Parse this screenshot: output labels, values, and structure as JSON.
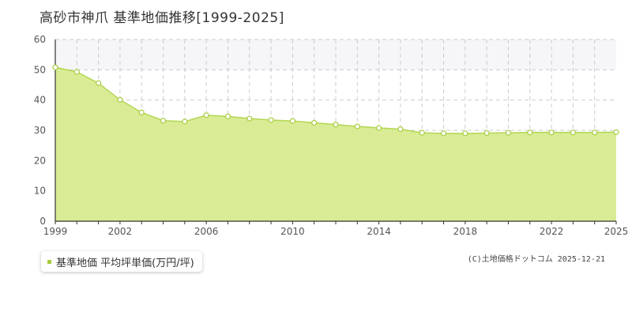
{
  "colors": {
    "area_fill": "#d9ec95",
    "line": "#b3d652",
    "marker_fill": "#ffffff",
    "marker_stroke": "#a6cc3e",
    "legend_marker": "#a6cc3e",
    "grid": "#cccccc",
    "band": "#f6f6f9"
  },
  "chart_data": {
    "type": "area",
    "title": "高砂市神爪 基準地価推移[1999-2025]",
    "xlabel": "",
    "ylabel": "",
    "xlim": [
      1999,
      2025
    ],
    "ylim": [
      0,
      60
    ],
    "y_ticks": [
      0,
      10,
      20,
      30,
      40,
      50,
      60
    ],
    "x_tick_labels": [
      1999,
      2002,
      2006,
      2010,
      2014,
      2018,
      2022,
      2025
    ],
    "x_grid_years": [
      2000,
      2001,
      2002,
      2003,
      2004,
      2005,
      2006,
      2007,
      2008,
      2009,
      2010,
      2011,
      2012,
      2013,
      2014,
      2015,
      2016,
      2017,
      2018,
      2019,
      2020,
      2021,
      2022,
      2023,
      2024
    ],
    "grid": true,
    "legend_position": "bottom-left",
    "series": [
      {
        "name": "基準地価 平均坪単価(万円/坪)",
        "x": [
          1999,
          2000,
          2001,
          2002,
          2003,
          2004,
          2005,
          2006,
          2007,
          2008,
          2009,
          2010,
          2011,
          2012,
          2013,
          2014,
          2015,
          2016,
          2017,
          2018,
          2019,
          2020,
          2021,
          2022,
          2023,
          2024,
          2025
        ],
        "values": [
          50.8,
          49.3,
          45.6,
          40.1,
          35.9,
          33.2,
          32.9,
          35.0,
          34.6,
          33.9,
          33.4,
          33.1,
          32.5,
          31.9,
          31.3,
          30.8,
          30.4,
          29.2,
          29.0,
          29.0,
          29.1,
          29.2,
          29.3,
          29.3,
          29.3,
          29.3,
          29.4
        ]
      }
    ]
  },
  "legend": {
    "label": "基準地価 平均坪単価(万円/坪)"
  },
  "footer": {
    "source": "(C)土地価格ドットコム 2025-12-21"
  }
}
